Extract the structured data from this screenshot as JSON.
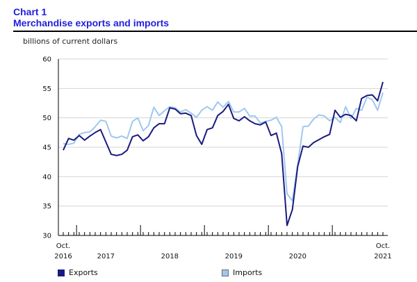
{
  "header": {
    "chart_number": "Chart 1",
    "title": "Merchandise exports and imports"
  },
  "colors": {
    "title": "#1f1fdd",
    "exports": "#1a1a80",
    "imports": "#9ec8ee"
  },
  "chart_data": {
    "type": "line",
    "title": "Merchandise exports and imports",
    "ylabel": "billions of current dollars",
    "xlabel": "",
    "ylim": [
      30,
      60
    ],
    "yticks": [
      30,
      35,
      40,
      45,
      50,
      55,
      60
    ],
    "x_start": "2016-10",
    "x_end": "2021-10",
    "x_tick_labels": [
      {
        "month": "2016-10",
        "label": "Oct.\n2016"
      },
      {
        "month": "2017-06",
        "label": "2017"
      },
      {
        "month": "2018-06",
        "label": "2018"
      },
      {
        "month": "2019-06",
        "label": "2019"
      },
      {
        "month": "2020-06",
        "label": "2020"
      },
      {
        "month": "2021-10",
        "label": "Oct.\n2021"
      }
    ],
    "year_boundaries": [
      "2017-01",
      "2018-01",
      "2019-01",
      "2020-01",
      "2021-01"
    ],
    "legend_position": "bottom",
    "grid": "horizontal",
    "series": [
      {
        "name": "Exports",
        "values": [
          44.5,
          46.5,
          46.2,
          47.0,
          46.2,
          46.9,
          47.5,
          48.0,
          45.9,
          43.8,
          43.6,
          43.8,
          44.5,
          46.8,
          47.1,
          46.1,
          46.8,
          48.3,
          49.0,
          49.0,
          51.7,
          51.5,
          50.7,
          50.8,
          50.4,
          47.0,
          45.5,
          48.0,
          48.3,
          50.4,
          51.1,
          52.3,
          49.9,
          49.5,
          50.2,
          49.5,
          49.0,
          48.8,
          49.3,
          47.0,
          47.4,
          43.9,
          31.7,
          34.4,
          41.7,
          45.2,
          45.0,
          45.8,
          46.3,
          46.8,
          47.2,
          51.3,
          50.1,
          50.6,
          50.4,
          49.5,
          53.3,
          53.8,
          53.9,
          52.9,
          56.1
        ]
      },
      {
        "name": "Imports",
        "values": [
          45.6,
          45.5,
          45.7,
          47.2,
          47.5,
          47.6,
          48.5,
          49.6,
          49.4,
          46.9,
          46.6,
          46.9,
          46.5,
          49.4,
          50.0,
          47.8,
          48.7,
          51.8,
          50.4,
          51.2,
          51.9,
          51.7,
          51.0,
          51.4,
          50.8,
          50.1,
          51.3,
          51.9,
          51.3,
          52.7,
          51.8,
          52.8,
          51.0,
          51.0,
          51.6,
          50.3,
          50.3,
          49.1,
          49.4,
          49.6,
          50.1,
          48.5,
          37.1,
          35.9,
          42.0,
          48.5,
          48.6,
          49.8,
          50.5,
          50.3,
          49.5,
          50.1,
          49.2,
          51.9,
          49.9,
          51.6,
          51.3,
          53.5,
          53.1,
          51.3,
          54.3
        ]
      }
    ]
  }
}
